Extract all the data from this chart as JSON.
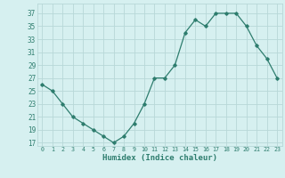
{
  "x": [
    0,
    1,
    2,
    3,
    4,
    5,
    6,
    7,
    8,
    9,
    10,
    11,
    12,
    13,
    14,
    15,
    16,
    17,
    18,
    19,
    20,
    21,
    22,
    23
  ],
  "y": [
    26,
    25,
    23,
    21,
    20,
    19,
    18,
    17,
    18,
    20,
    23,
    27,
    27,
    29,
    34,
    36,
    35,
    37,
    37,
    37,
    35,
    32,
    30,
    27
  ],
  "line_color": "#2e7d6e",
  "marker_color": "#2e7d6e",
  "bg_color": "#d6f0f0",
  "grid_color": "#b8d8d8",
  "xlabel": "Humidex (Indice chaleur)",
  "ylabel_ticks": [
    17,
    19,
    21,
    23,
    25,
    27,
    29,
    31,
    33,
    35,
    37
  ],
  "xlim": [
    -0.5,
    23.5
  ],
  "ylim": [
    16.5,
    38.5
  ]
}
